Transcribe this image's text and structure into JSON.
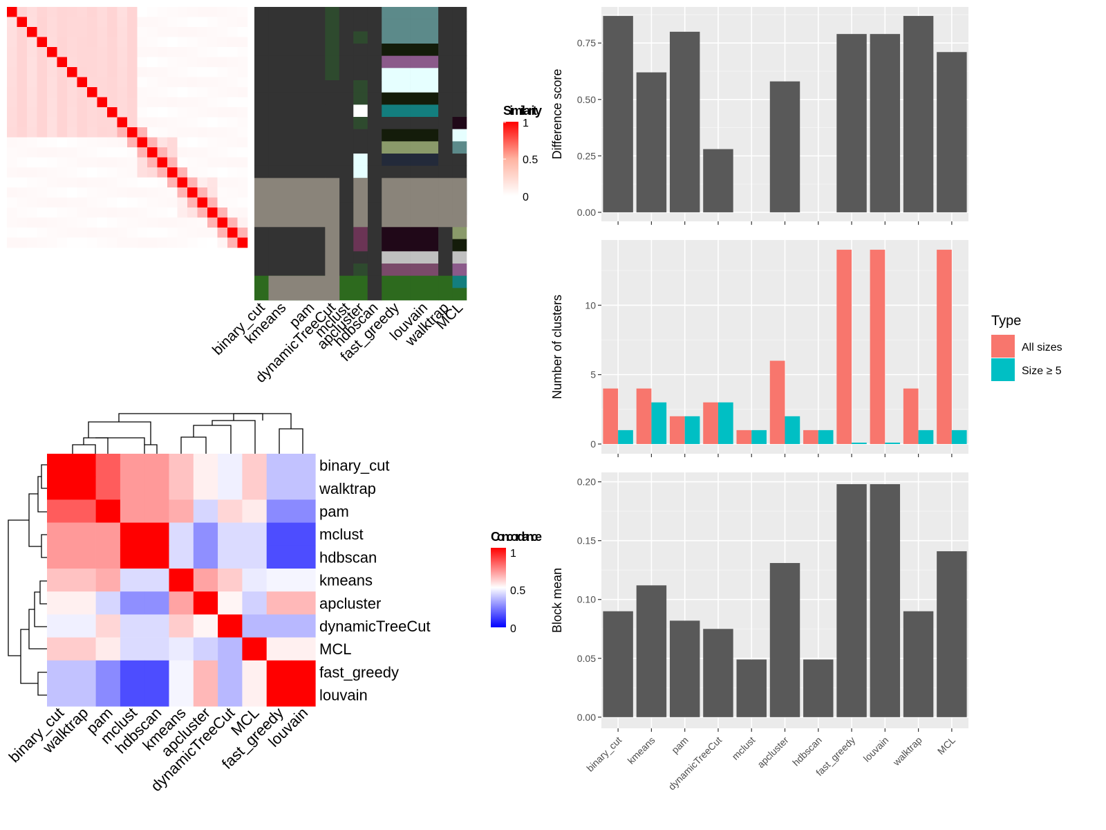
{
  "chart_data": [
    {
      "type": "heatmap",
      "name": "similarity-matrix",
      "legend": {
        "title": "Similarity",
        "ticks": [
          "1",
          "0.5",
          "0"
        ]
      },
      "n": 24,
      "colors": {
        "high": "#FF0000",
        "low": "#FFFFFF"
      },
      "blocks": [
        [
          0,
          13,
          0.12
        ],
        [
          13,
          17,
          0.1
        ],
        [
          17,
          21,
          0.06
        ],
        [
          21,
          24,
          0.03
        ]
      ],
      "near_diagonal": 0.3
    },
    {
      "type": "heatmap",
      "name": "cluster-membership-grid",
      "columns": [
        "binary_cut",
        "kmeans",
        "pam",
        "dynamicTreeCut",
        "mclust",
        "apcluster",
        "hdbscan",
        "fast_greedy",
        "louvain",
        "walktrap",
        "MCL"
      ],
      "column_weights": [
        1,
        2,
        2,
        1,
        1,
        1,
        1,
        2,
        2,
        1,
        1
      ],
      "row_count": 24,
      "column_colors": [
        [
          "#333333",
          "#333333",
          "#333333",
          "#333333",
          "#333333",
          "#333333",
          "#333333",
          "#333333",
          "#333333",
          "#333333",
          "#333333",
          "#333333",
          "#333333",
          "#333333",
          "#333333",
          "#333333",
          "#333333",
          "#333333",
          "#333333",
          "#333333",
          "#333333",
          "#333333",
          "#2D6A1E",
          "#2D6A1E"
        ],
        [
          "#333333",
          "#333333",
          "#333333",
          "#333333",
          "#333333",
          "#333333",
          "#333333",
          "#333333",
          "#333333",
          "#333333",
          "#333333",
          "#333333",
          "#333333",
          "#333333",
          "#333333",
          "#333333",
          "#333333",
          "#333333",
          "#333333",
          "#333333",
          "#333333",
          "#333333",
          "#2D6A1E",
          "#2D6A1E"
        ],
        [
          "#333333",
          "#333333",
          "#333333",
          "#333333",
          "#333333",
          "#333333",
          "#333333",
          "#333333",
          "#333333",
          "#333333",
          "#333333",
          "#333333",
          "#333333",
          "#333333",
          "#333333",
          "#333333",
          "#333333",
          "#333333",
          "#333333",
          "#333333",
          "#333333",
          "#333333",
          "#2D6A1E",
          "#2D6A1E"
        ],
        [
          "#2E4A2E",
          "#2E4A2E",
          "#2E4A2E",
          "#2E4A2E",
          "#2E4A2E",
          "#2E4A2E",
          "#333333",
          "#333333",
          "#333333",
          "#333333",
          "#333333",
          "#333333",
          "#333333",
          "#333333",
          "#333333",
          "#333333",
          "#333333",
          "#333333",
          "#333333",
          "#333333",
          "#333333",
          "#333333",
          "#2D6A1E",
          "#2D6A1E"
        ],
        [
          "#333333",
          "#333333",
          "#333333",
          "#333333",
          "#333333",
          "#333333",
          "#333333",
          "#333333",
          "#333333",
          "#333333",
          "#333333",
          "#333333",
          "#333333",
          "#333333",
          "#333333",
          "#333333",
          "#333333",
          "#333333",
          "#333333",
          "#333333",
          "#333333",
          "#333333",
          "#2D6A1E",
          "#2D6A1E"
        ],
        [
          "#333333",
          "#333333",
          "#2E4A2E",
          "#333333",
          "#333333",
          "#333333",
          "#2E4A2E",
          "#2E4A2E",
          "#FFFFFF",
          "#2E4A2E",
          "#333333",
          "#333333",
          "#E6FFFF",
          "#E6FFFF",
          "#333333",
          "#333333",
          "#333333",
          "#333333",
          "#6B3455",
          "#6B3455",
          "#333333",
          "#2E4A2E",
          "#2D6A1E",
          "#2D6A1E"
        ],
        [
          "#333333",
          "#333333",
          "#333333",
          "#333333",
          "#333333",
          "#333333",
          "#333333",
          "#333333",
          "#333333",
          "#333333",
          "#333333",
          "#333333",
          "#333333",
          "#333333",
          "#333333",
          "#333333",
          "#333333",
          "#333333",
          "#333333",
          "#333333",
          "#333333",
          "#333333",
          "#333333",
          "#333333"
        ],
        [
          "#5C8A8A",
          "#5C8A8A",
          "#5C8A8A",
          "#141C0A",
          "#8B5A8A",
          "#E6FFFF",
          "#E6FFFF",
          "#141C0A",
          "#137E7E",
          "#333333",
          "#141C0A",
          "#8A9A6A",
          "#232A3A",
          "#333333",
          "#333333",
          "#333333",
          "#333333",
          "#333333",
          "#200818",
          "#200818",
          "#C0C0C0",
          "#7A4A6A",
          "#2D6A1E",
          "#2D6A1E"
        ],
        [
          "#5C8A8A",
          "#5C8A8A",
          "#5C8A8A",
          "#141C0A",
          "#8B5A8A",
          "#E6FFFF",
          "#E6FFFF",
          "#141C0A",
          "#137E7E",
          "#333333",
          "#141C0A",
          "#8A9A6A",
          "#232A3A",
          "#333333",
          "#333333",
          "#333333",
          "#333333",
          "#333333",
          "#200818",
          "#200818",
          "#C0C0C0",
          "#7A4A6A",
          "#2D6A1E",
          "#2D6A1E"
        ],
        [
          "#333333",
          "#333333",
          "#333333",
          "#333333",
          "#333333",
          "#333333",
          "#333333",
          "#333333",
          "#333333",
          "#333333",
          "#333333",
          "#333333",
          "#333333",
          "#333333",
          "#333333",
          "#333333",
          "#333333",
          "#333333",
          "#333333",
          "#333333",
          "#333333",
          "#333333",
          "#2D6A1E",
          "#2D6A1E"
        ],
        [
          "#333333",
          "#333333",
          "#333333",
          "#333333",
          "#333333",
          "#333333",
          "#333333",
          "#333333",
          "#333333",
          "#200818",
          "#E6FFFF",
          "#5C8A8A",
          "#333333",
          "#333333",
          "#333333",
          "#333333",
          "#232A3A",
          "#6B3455",
          "#8A9A6A",
          "#141C0A",
          "#C0C0C0",
          "#8B5A8A",
          "#137E7E",
          "#2D6A1E"
        ]
      ],
      "overlays": [
        {
          "row_start": 14,
          "row_end": 18,
          "col_start": 0,
          "col_end": 11,
          "color": "#8A847A",
          "except_cols": [
            4,
            6
          ]
        },
        {
          "row_start": 18,
          "row_end": 24,
          "col_start": 3,
          "col_end": 4,
          "color": "#8A847A"
        },
        {
          "row_start": 22,
          "row_end": 24,
          "col_start": 1,
          "col_end": 4,
          "color": "#8A847A"
        }
      ]
    },
    {
      "type": "heatmap",
      "name": "concordance-matrix",
      "legend": {
        "title": "Concordance",
        "ticks": [
          "1",
          "0.5",
          "0"
        ]
      },
      "col_labels": [
        "binary_cut",
        "walktrap",
        "pam",
        "mclust",
        "hdbscan",
        "kmeans",
        "apcluster",
        "dynamicTreeCut",
        "MCL",
        "fast_greedy",
        "louvain"
      ],
      "row_labels": [
        "binary_cut",
        "walktrap",
        "pam",
        "mclust",
        "hdbscan",
        "kmeans",
        "apcluster",
        "dynamicTreeCut",
        "MCL",
        "fast_greedy",
        "louvain"
      ],
      "values": [
        [
          1.0,
          1.0,
          0.82,
          0.7,
          0.7,
          0.62,
          0.53,
          0.47,
          0.6,
          0.38,
          0.38
        ],
        [
          1.0,
          1.0,
          0.82,
          0.7,
          0.7,
          0.62,
          0.53,
          0.47,
          0.6,
          0.38,
          0.38
        ],
        [
          0.82,
          0.82,
          1.0,
          0.7,
          0.7,
          0.66,
          0.42,
          0.58,
          0.54,
          0.27,
          0.27
        ],
        [
          0.7,
          0.7,
          0.7,
          1.0,
          1.0,
          0.43,
          0.28,
          0.43,
          0.43,
          0.15,
          0.15
        ],
        [
          0.7,
          0.7,
          0.7,
          1.0,
          1.0,
          0.43,
          0.28,
          0.43,
          0.43,
          0.15,
          0.15
        ],
        [
          0.62,
          0.62,
          0.66,
          0.43,
          0.43,
          1.0,
          0.68,
          0.6,
          0.46,
          0.48,
          0.48
        ],
        [
          0.53,
          0.53,
          0.42,
          0.28,
          0.28,
          0.68,
          1.0,
          0.52,
          0.41,
          0.64,
          0.64
        ],
        [
          0.47,
          0.47,
          0.58,
          0.43,
          0.43,
          0.6,
          0.52,
          1.0,
          0.36,
          0.36,
          0.36
        ],
        [
          0.6,
          0.6,
          0.54,
          0.43,
          0.43,
          0.46,
          0.41,
          0.36,
          1.0,
          0.53,
          0.53
        ],
        [
          0.38,
          0.38,
          0.27,
          0.15,
          0.15,
          0.48,
          0.64,
          0.36,
          0.53,
          1.0,
          1.0
        ],
        [
          0.38,
          0.38,
          0.27,
          0.15,
          0.15,
          0.48,
          0.64,
          0.36,
          0.53,
          1.0,
          1.0
        ]
      ],
      "colors": {
        "high": "#FF0000",
        "mid": "#FFFFFF",
        "low": "#0000FF"
      }
    },
    {
      "type": "bar",
      "name": "difference-score",
      "categories": [
        "binary_cut",
        "kmeans",
        "pam",
        "dynamicTreeCut",
        "mclust",
        "apcluster",
        "hdbscan",
        "fast_greedy",
        "louvain",
        "walktrap",
        "MCL"
      ],
      "values": [
        0.87,
        0.62,
        0.8,
        0.28,
        0,
        0.58,
        0,
        0.79,
        0.79,
        0.87,
        0.71
      ],
      "xlabel": "",
      "ylabel": "Difference score",
      "ylim": [
        -0.04,
        0.91
      ],
      "yticks": [
        0,
        0.25,
        0.5,
        0.75
      ],
      "ytick_labels": [
        "0.00",
        "0.25",
        "0.50",
        "0.75"
      ],
      "bar_color": "#595959",
      "panel_bg": "#EBEBEB",
      "grid": true
    },
    {
      "type": "bar",
      "name": "number-of-clusters",
      "categories": [
        "binary_cut",
        "kmeans",
        "pam",
        "dynamicTreeCut",
        "mclust",
        "apcluster",
        "hdbscan",
        "fast_greedy",
        "louvain",
        "walktrap",
        "MCL"
      ],
      "series": [
        {
          "name": "All sizes",
          "color": "#F8766D",
          "values": [
            4,
            4,
            2,
            3,
            1,
            6,
            1,
            14,
            14,
            4,
            14
          ]
        },
        {
          "name": "Size ≥ 5",
          "color": "#00BFC4",
          "values": [
            1,
            3,
            2,
            3,
            1,
            2,
            1,
            0.1,
            0.1,
            1,
            1
          ]
        }
      ],
      "xlabel": "",
      "ylabel": "Number of clusters",
      "ylim": [
        -0.7,
        14.7
      ],
      "yticks": [
        0,
        5,
        10
      ],
      "ytick_labels": [
        "0",
        "5",
        "10"
      ],
      "legend": {
        "title": "Type",
        "entries": [
          "All sizes",
          "Size ≥ 5"
        ],
        "placement": "right"
      },
      "panel_bg": "#EBEBEB",
      "grid": true
    },
    {
      "type": "bar",
      "name": "block-mean",
      "categories": [
        "binary_cut",
        "kmeans",
        "pam",
        "dynamicTreeCut",
        "mclust",
        "apcluster",
        "hdbscan",
        "fast_greedy",
        "louvain",
        "walktrap",
        "MCL"
      ],
      "values": [
        0.09,
        0.112,
        0.082,
        0.075,
        0.049,
        0.131,
        0.049,
        0.198,
        0.198,
        0.09,
        0.141
      ],
      "xlabel": "",
      "ylabel": "Block mean",
      "ylim": [
        -0.0095,
        0.208
      ],
      "yticks": [
        0,
        0.05,
        0.1,
        0.15,
        0.2
      ],
      "ytick_labels": [
        "0.00",
        "0.05",
        "0.10",
        "0.15",
        "0.20"
      ],
      "bar_color": "#595959",
      "panel_bg": "#EBEBEB",
      "grid": true
    }
  ]
}
